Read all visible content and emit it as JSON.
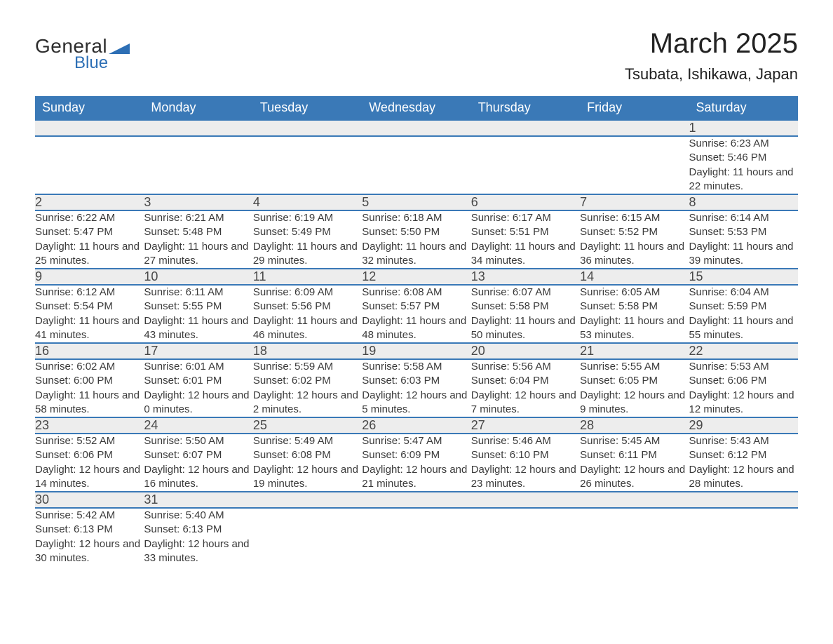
{
  "logo": {
    "text_top": "General",
    "text_bottom": "Blue",
    "flag_color": "#2d6fb5",
    "text_color_top": "#2d2d2d",
    "text_color_bottom": "#2d6fb5"
  },
  "header": {
    "month_title": "March 2025",
    "location": "Tsubata, Ishikawa, Japan"
  },
  "calendar": {
    "type": "table",
    "header_bg": "#3a79b7",
    "header_fg": "#ffffff",
    "daynum_bg": "#ededed",
    "row_divider_color": "#3a79b7",
    "text_color": "#3a3a3a",
    "background_color": "#ffffff",
    "header_fontsize": 18,
    "daynum_fontsize": 18,
    "detail_fontsize": 15,
    "columns": [
      "Sunday",
      "Monday",
      "Tuesday",
      "Wednesday",
      "Thursday",
      "Friday",
      "Saturday"
    ],
    "weeks": [
      [
        null,
        null,
        null,
        null,
        null,
        null,
        {
          "n": "1",
          "sunrise": "6:23 AM",
          "sunset": "5:46 PM",
          "daylight": "11 hours and 22 minutes."
        }
      ],
      [
        {
          "n": "2",
          "sunrise": "6:22 AM",
          "sunset": "5:47 PM",
          "daylight": "11 hours and 25 minutes."
        },
        {
          "n": "3",
          "sunrise": "6:21 AM",
          "sunset": "5:48 PM",
          "daylight": "11 hours and 27 minutes."
        },
        {
          "n": "4",
          "sunrise": "6:19 AM",
          "sunset": "5:49 PM",
          "daylight": "11 hours and 29 minutes."
        },
        {
          "n": "5",
          "sunrise": "6:18 AM",
          "sunset": "5:50 PM",
          "daylight": "11 hours and 32 minutes."
        },
        {
          "n": "6",
          "sunrise": "6:17 AM",
          "sunset": "5:51 PM",
          "daylight": "11 hours and 34 minutes."
        },
        {
          "n": "7",
          "sunrise": "6:15 AM",
          "sunset": "5:52 PM",
          "daylight": "11 hours and 36 minutes."
        },
        {
          "n": "8",
          "sunrise": "6:14 AM",
          "sunset": "5:53 PM",
          "daylight": "11 hours and 39 minutes."
        }
      ],
      [
        {
          "n": "9",
          "sunrise": "6:12 AM",
          "sunset": "5:54 PM",
          "daylight": "11 hours and 41 minutes."
        },
        {
          "n": "10",
          "sunrise": "6:11 AM",
          "sunset": "5:55 PM",
          "daylight": "11 hours and 43 minutes."
        },
        {
          "n": "11",
          "sunrise": "6:09 AM",
          "sunset": "5:56 PM",
          "daylight": "11 hours and 46 minutes."
        },
        {
          "n": "12",
          "sunrise": "6:08 AM",
          "sunset": "5:57 PM",
          "daylight": "11 hours and 48 minutes."
        },
        {
          "n": "13",
          "sunrise": "6:07 AM",
          "sunset": "5:58 PM",
          "daylight": "11 hours and 50 minutes."
        },
        {
          "n": "14",
          "sunrise": "6:05 AM",
          "sunset": "5:58 PM",
          "daylight": "11 hours and 53 minutes."
        },
        {
          "n": "15",
          "sunrise": "6:04 AM",
          "sunset": "5:59 PM",
          "daylight": "11 hours and 55 minutes."
        }
      ],
      [
        {
          "n": "16",
          "sunrise": "6:02 AM",
          "sunset": "6:00 PM",
          "daylight": "11 hours and 58 minutes."
        },
        {
          "n": "17",
          "sunrise": "6:01 AM",
          "sunset": "6:01 PM",
          "daylight": "12 hours and 0 minutes."
        },
        {
          "n": "18",
          "sunrise": "5:59 AM",
          "sunset": "6:02 PM",
          "daylight": "12 hours and 2 minutes."
        },
        {
          "n": "19",
          "sunrise": "5:58 AM",
          "sunset": "6:03 PM",
          "daylight": "12 hours and 5 minutes."
        },
        {
          "n": "20",
          "sunrise": "5:56 AM",
          "sunset": "6:04 PM",
          "daylight": "12 hours and 7 minutes."
        },
        {
          "n": "21",
          "sunrise": "5:55 AM",
          "sunset": "6:05 PM",
          "daylight": "12 hours and 9 minutes."
        },
        {
          "n": "22",
          "sunrise": "5:53 AM",
          "sunset": "6:06 PM",
          "daylight": "12 hours and 12 minutes."
        }
      ],
      [
        {
          "n": "23",
          "sunrise": "5:52 AM",
          "sunset": "6:06 PM",
          "daylight": "12 hours and 14 minutes."
        },
        {
          "n": "24",
          "sunrise": "5:50 AM",
          "sunset": "6:07 PM",
          "daylight": "12 hours and 16 minutes."
        },
        {
          "n": "25",
          "sunrise": "5:49 AM",
          "sunset": "6:08 PM",
          "daylight": "12 hours and 19 minutes."
        },
        {
          "n": "26",
          "sunrise": "5:47 AM",
          "sunset": "6:09 PM",
          "daylight": "12 hours and 21 minutes."
        },
        {
          "n": "27",
          "sunrise": "5:46 AM",
          "sunset": "6:10 PM",
          "daylight": "12 hours and 23 minutes."
        },
        {
          "n": "28",
          "sunrise": "5:45 AM",
          "sunset": "6:11 PM",
          "daylight": "12 hours and 26 minutes."
        },
        {
          "n": "29",
          "sunrise": "5:43 AM",
          "sunset": "6:12 PM",
          "daylight": "12 hours and 28 minutes."
        }
      ],
      [
        {
          "n": "30",
          "sunrise": "5:42 AM",
          "sunset": "6:13 PM",
          "daylight": "12 hours and 30 minutes."
        },
        {
          "n": "31",
          "sunrise": "5:40 AM",
          "sunset": "6:13 PM",
          "daylight": "12 hours and 33 minutes."
        },
        null,
        null,
        null,
        null,
        null
      ]
    ],
    "labels": {
      "sunrise_prefix": "Sunrise: ",
      "sunset_prefix": "Sunset: ",
      "daylight_prefix": "Daylight: "
    }
  }
}
